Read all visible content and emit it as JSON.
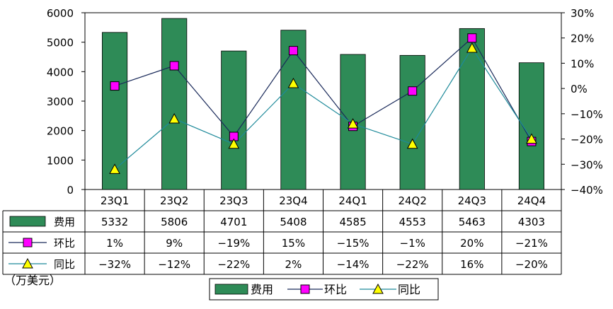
{
  "chart_data": {
    "type": "bar",
    "categories": [
      "23Q1",
      "23Q2",
      "23Q3",
      "23Q4",
      "24Q1",
      "24Q2",
      "24Q3",
      "24Q4"
    ],
    "series": [
      {
        "name": "费用",
        "kind": "bar",
        "axis": "left",
        "color": "#2e8b57",
        "values": [
          5332,
          5806,
          4701,
          5408,
          4585,
          4553,
          5463,
          4303
        ],
        "labels": [
          "5332",
          "5806",
          "4701",
          "5408",
          "4585",
          "4553",
          "5463",
          "4303"
        ]
      },
      {
        "name": "环比",
        "kind": "line",
        "axis": "right",
        "color": "#1a2a5a",
        "marker": "square",
        "marker_color": "#ff00ff",
        "values": [
          1,
          9,
          -19,
          15,
          -15,
          -1,
          20,
          -21
        ],
        "labels": [
          "1%",
          "9%",
          "−19%",
          "15%",
          "−15%",
          "−1%",
          "20%",
          "−21%"
        ]
      },
      {
        "name": "同比",
        "kind": "line",
        "axis": "right",
        "color": "#1e8a9a",
        "marker": "triangle",
        "marker_color": "#ffff00",
        "values": [
          -32,
          -12,
          -22,
          2,
          -14,
          -22,
          16,
          -20
        ],
        "labels": [
          "−32%",
          "−12%",
          "−22%",
          "2%",
          "−14%",
          "−22%",
          "16%",
          "−20%"
        ]
      }
    ],
    "y_left": {
      "ylim": [
        0,
        6000
      ],
      "ticks": [
        0,
        1000,
        2000,
        3000,
        4000,
        5000,
        6000
      ],
      "tick_labels": [
        "0",
        "1000",
        "2000",
        "3000",
        "4000",
        "5000",
        "6000"
      ]
    },
    "y_right": {
      "ylim": [
        -40,
        30
      ],
      "ticks": [
        -40,
        -30,
        -20,
        -10,
        0,
        10,
        20,
        30
      ],
      "tick_labels": [
        "−40%",
        "−30%",
        "−20%",
        "−10%",
        "0%",
        "10%",
        "20%",
        "30%"
      ]
    },
    "unit_label": "（万美元）",
    "legend": {
      "placement": "bottom-center",
      "entries": [
        "费用",
        "环比",
        "同比"
      ]
    },
    "grid": false,
    "data_table": true
  }
}
